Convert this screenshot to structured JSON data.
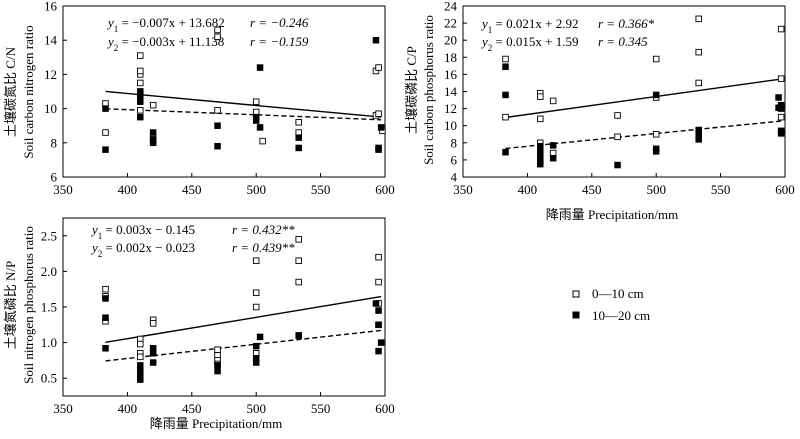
{
  "chart_data": [
    {
      "type": "scatter",
      "ylabel_cn": "土壤碳氮比 C/N",
      "ylabel_en": "Soil carbon nitrogen ratio",
      "xlabel": "",
      "xlim": [
        350,
        600
      ],
      "ylim": [
        6,
        16
      ],
      "xticks": [
        350,
        400,
        450,
        500,
        550,
        600
      ],
      "yticks": [
        6,
        8,
        10,
        12,
        14,
        16
      ],
      "equations": [
        {
          "lhs": "y",
          "sub": "1",
          "rhs": " = −0.007x + 13.682",
          "r": "r = −0.246"
        },
        {
          "lhs": "y",
          "sub": "2",
          "rhs": " = −0.003x + 11.138",
          "r": "r = −0.159"
        }
      ],
      "series": [
        {
          "name": "0—10 cm",
          "x": [
            383,
            383,
            410,
            410,
            410,
            410,
            410,
            410,
            420,
            420,
            470,
            470,
            470,
            500,
            500,
            505,
            533,
            533,
            593,
            593,
            595,
            595,
            598
          ],
          "y": [
            8.6,
            10.3,
            9.9,
            11.0,
            11.5,
            12.0,
            12.2,
            13.1,
            10.2,
            8.3,
            14.2,
            14.6,
            9.9,
            9.8,
            10.4,
            8.1,
            9.2,
            8.6,
            12.2,
            9.6,
            9.7,
            12.4,
            8.7
          ],
          "fit": {
            "slope": -0.007,
            "intercept": 13.682
          }
        },
        {
          "name": "10—20 cm",
          "x": [
            383,
            383,
            410,
            410,
            410,
            410,
            410,
            420,
            420,
            420,
            470,
            470,
            500,
            500,
            503,
            503,
            533,
            533,
            593,
            595,
            595,
            597
          ],
          "y": [
            10.0,
            7.6,
            10.4,
            10.6,
            10.8,
            11.0,
            9.5,
            8.2,
            8.0,
            8.6,
            7.8,
            9.0,
            9.5,
            9.3,
            12.4,
            8.9,
            8.3,
            7.7,
            14.0,
            7.6,
            7.7,
            8.9
          ],
          "fit": {
            "slope": -0.003,
            "intercept": 11.138
          }
        }
      ]
    },
    {
      "type": "scatter",
      "ylabel_cn": "土壤碳磷比 C/P",
      "ylabel_en": "Soil carbon phosphorus ratio",
      "xlabel": "降雨量 Precipitation/mm",
      "xlim": [
        350,
        600
      ],
      "ylim": [
        4,
        24
      ],
      "xticks": [
        350,
        400,
        450,
        500,
        550,
        600
      ],
      "yticks": [
        4,
        6,
        8,
        10,
        12,
        14,
        16,
        18,
        20,
        22,
        24
      ],
      "equations": [
        {
          "lhs": "y",
          "sub": "1",
          "rhs": " = 0.021x + 2.92",
          "r": "r = 0.366*"
        },
        {
          "lhs": "y",
          "sub": "2",
          "rhs": " = 0.015x + 1.59",
          "r": "r = 0.345"
        }
      ],
      "series": [
        {
          "name": "0—10 cm",
          "x": [
            383,
            383,
            410,
            410,
            410,
            410,
            420,
            420,
            470,
            470,
            500,
            500,
            500,
            533,
            533,
            533,
            597,
            597,
            597
          ],
          "y": [
            17.8,
            11.0,
            13.8,
            13.4,
            8.0,
            10.8,
            12.9,
            6.8,
            11.2,
            8.7,
            17.8,
            13.3,
            9.0,
            22.5,
            18.6,
            15.0,
            21.3,
            15.5,
            11.0
          ],
          "fit": {
            "slope": 0.021,
            "intercept": 2.92
          }
        },
        {
          "name": "10—20 cm",
          "x": [
            383,
            383,
            383,
            410,
            410,
            410,
            410,
            410,
            410,
            420,
            420,
            470,
            500,
            500,
            500,
            533,
            533,
            533,
            595,
            595,
            597,
            597,
            597,
            597
          ],
          "y": [
            16.9,
            13.6,
            6.9,
            7.6,
            7.0,
            6.5,
            6.0,
            5.8,
            5.5,
            7.7,
            6.2,
            5.4,
            13.6,
            7.3,
            7.0,
            9.5,
            8.8,
            8.4,
            13.3,
            12.1,
            12.4,
            12.0,
            9.4,
            9.1
          ],
          "fit": {
            "slope": 0.015,
            "intercept": 1.59
          }
        }
      ]
    },
    {
      "type": "scatter",
      "ylabel_cn": "土壤氮磷比 N/P",
      "ylabel_en": "Soil nitrogen phosphorus ratio",
      "xlabel": "降雨量 Precipitation/mm",
      "xlim": [
        350,
        600
      ],
      "ylim": [
        0.25,
        2.75
      ],
      "xticks": [
        350,
        400,
        450,
        500,
        550,
        600
      ],
      "yticks": [
        0.5,
        1.0,
        1.5,
        2.0,
        2.5
      ],
      "ytick_labels": [
        "0.5",
        "1.0",
        "1.5",
        "2.0",
        "2.5"
      ],
      "equations": [
        {
          "lhs": "y",
          "sub": "1",
          "rhs": " = 0.003x −  0.145",
          "r": "r = 0.432**"
        },
        {
          "lhs": "y",
          "sub": "2",
          "rhs": " = 0.002x −  0.023",
          "r": "r = 0.439**"
        }
      ],
      "series": [
        {
          "name": "0—10 cm",
          "x": [
            383,
            383,
            383,
            410,
            410,
            410,
            410,
            420,
            420,
            470,
            470,
            470,
            470,
            500,
            500,
            500,
            500,
            533,
            533,
            533,
            533,
            595,
            595,
            595,
            595
          ],
          "y": [
            1.75,
            1.65,
            1.3,
            1.05,
            0.98,
            0.85,
            0.8,
            1.32,
            1.27,
            0.9,
            0.82,
            0.75,
            0.7,
            2.15,
            1.7,
            1.5,
            0.85,
            2.45,
            2.15,
            1.85,
            1.1,
            2.2,
            1.85,
            1.55,
            1.25
          ],
          "fit": {
            "slope": 0.003,
            "intercept": -0.145
          }
        },
        {
          "name": "10—20 cm",
          "x": [
            383,
            383,
            383,
            410,
            410,
            410,
            410,
            410,
            420,
            420,
            420,
            470,
            470,
            500,
            500,
            500,
            503,
            533,
            593,
            595,
            595,
            595,
            597
          ],
          "y": [
            1.62,
            1.35,
            0.92,
            0.68,
            0.6,
            0.55,
            0.52,
            0.48,
            0.92,
            0.85,
            0.72,
            0.68,
            0.6,
            0.95,
            0.78,
            0.72,
            1.08,
            1.1,
            1.55,
            1.45,
            1.25,
            0.88,
            1.0
          ],
          "fit": {
            "slope": 0.002,
            "intercept": -0.023
          }
        }
      ]
    }
  ],
  "legend": {
    "items": [
      {
        "label": "0—10 cm",
        "marker": "open-square"
      },
      {
        "label": "10—20 cm",
        "marker": "filled-square"
      }
    ]
  }
}
